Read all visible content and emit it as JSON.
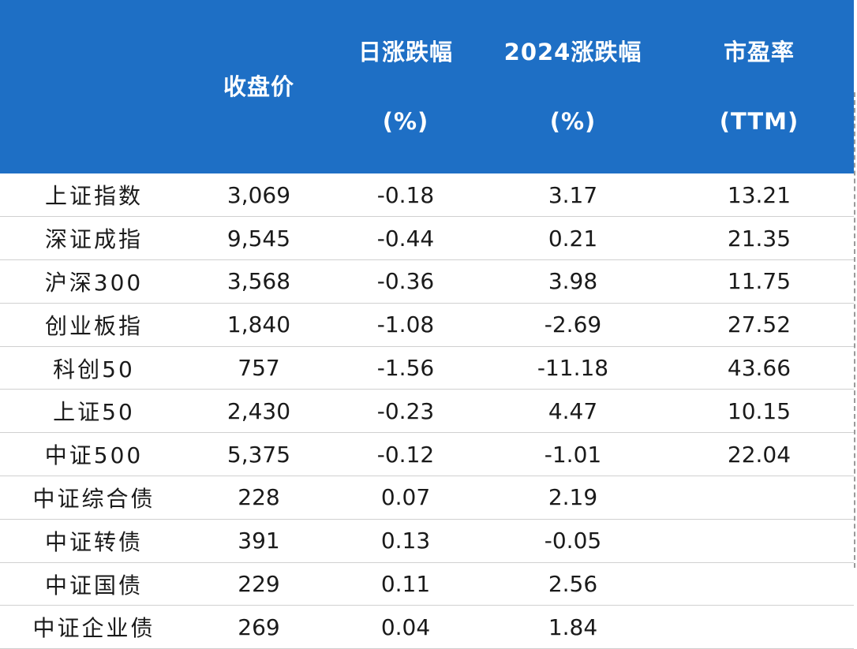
{
  "header": {
    "col0": "",
    "col1": "收盘价",
    "col2_line1": "日涨跌幅",
    "col2_line2": "(%)",
    "col3_line1": "2024涨跌幅",
    "col3_line2": "(%)",
    "col4_line1": "市盈率",
    "col4_line2": "(TTM)"
  },
  "rows": [
    {
      "name": "上证指数",
      "close": "3,069",
      "daily": "-0.18",
      "ytd": "3.17",
      "pe": "13.21"
    },
    {
      "name": "深证成指",
      "close": "9,545",
      "daily": "-0.44",
      "ytd": "0.21",
      "pe": "21.35"
    },
    {
      "name": "沪深300",
      "close": "3,568",
      "daily": "-0.36",
      "ytd": "3.98",
      "pe": "11.75"
    },
    {
      "name": "创业板指",
      "close": "1,840",
      "daily": "-1.08",
      "ytd": "-2.69",
      "pe": "27.52"
    },
    {
      "name": "科创50",
      "close": "757",
      "daily": "-1.56",
      "ytd": "-11.18",
      "pe": "43.66"
    },
    {
      "name": "上证50",
      "close": "2,430",
      "daily": "-0.23",
      "ytd": "4.47",
      "pe": "10.15"
    },
    {
      "name": "中证500",
      "close": "5,375",
      "daily": "-0.12",
      "ytd": "-1.01",
      "pe": "22.04"
    },
    {
      "name": "中证综合债",
      "close": "228",
      "daily": "0.07",
      "ytd": "2.19",
      "pe": ""
    },
    {
      "name": "中证转债",
      "close": "391",
      "daily": "0.13",
      "ytd": "-0.05",
      "pe": ""
    },
    {
      "name": "中证国债",
      "close": "229",
      "daily": "0.11",
      "ytd": "2.56",
      "pe": ""
    },
    {
      "name": "中证企业债",
      "close": "269",
      "daily": "0.04",
      "ytd": "1.84",
      "pe": ""
    }
  ],
  "colors": {
    "header_bg": "#1e6fc5",
    "negative": "#2e9a2e",
    "positive": "#ff1f1f"
  }
}
